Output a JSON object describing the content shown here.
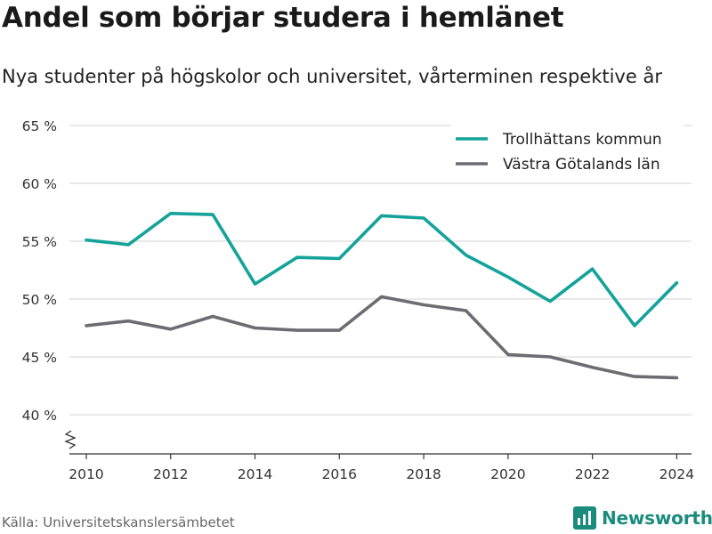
{
  "title": "Andel som börjar studera i hemlänet",
  "subtitle": "Nya studenter på högskolor och universitet, vårterminen respektive år",
  "source": "Källa: Universitetskanslersämbetet",
  "brand": {
    "name": "Newsworthy",
    "icon": "newsworthy-logo-icon",
    "color": "#1a8c7e"
  },
  "chart_data": {
    "type": "line",
    "title": "",
    "xlabel": "",
    "ylabel": "",
    "x": [
      2010,
      2011,
      2012,
      2013,
      2014,
      2015,
      2016,
      2017,
      2018,
      2019,
      2020,
      2021,
      2022,
      2023,
      2024
    ],
    "xticks": [
      2010,
      2012,
      2014,
      2016,
      2018,
      2020,
      2022,
      2024
    ],
    "yticks": [
      40,
      45,
      50,
      55,
      60,
      65
    ],
    "ytick_labels": [
      "40 %",
      "45 %",
      "50 %",
      "55 %",
      "60 %",
      "65 %"
    ],
    "ylim": [
      37,
      65
    ],
    "xlim": [
      2009.6,
      2024.35
    ],
    "grid": true,
    "axis_break": true,
    "legend_position": "top-right",
    "series": [
      {
        "name": "Trollhättans kommun",
        "color": "#14a39a",
        "values": [
          55.1,
          54.7,
          57.4,
          57.3,
          51.3,
          53.6,
          53.5,
          57.2,
          57.0,
          53.8,
          51.9,
          49.8,
          52.6,
          47.7,
          51.4
        ]
      },
      {
        "name": "Västra Götalands län",
        "color": "#6d6c72",
        "values": [
          47.7,
          48.1,
          47.4,
          48.5,
          47.5,
          47.3,
          47.3,
          50.2,
          49.5,
          49.0,
          45.2,
          45.0,
          44.1,
          43.3,
          43.2
        ]
      }
    ]
  }
}
